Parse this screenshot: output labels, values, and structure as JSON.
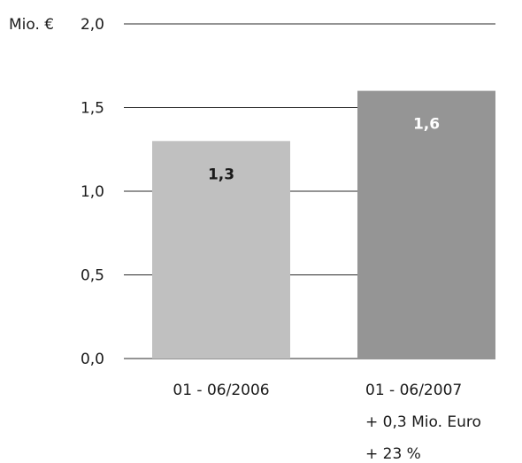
{
  "chart_data": {
    "type": "bar",
    "unit_label": "Mio. €",
    "categories": [
      "01 - 06/2006",
      "01 - 06/2007"
    ],
    "category_notes": [
      [],
      [
        "+ 0,3 Mio. Euro",
        "+ 23 %"
      ]
    ],
    "values": [
      1.3,
      1.6
    ],
    "value_labels": [
      "1,3",
      "1,6"
    ],
    "bar_colors": [
      "#c0c0c0",
      "#959595"
    ],
    "value_label_colors": [
      "#1a1a1a",
      "#ffffff"
    ],
    "yticks": [
      0.0,
      0.5,
      1.0,
      1.5,
      2.0
    ],
    "ytick_labels": [
      "0,0",
      "0,5",
      "1,0",
      "1,5",
      "2,0"
    ],
    "ylim": [
      0,
      2.0
    ],
    "grid": true,
    "title": "",
    "xlabel": "",
    "ylabel": ""
  }
}
